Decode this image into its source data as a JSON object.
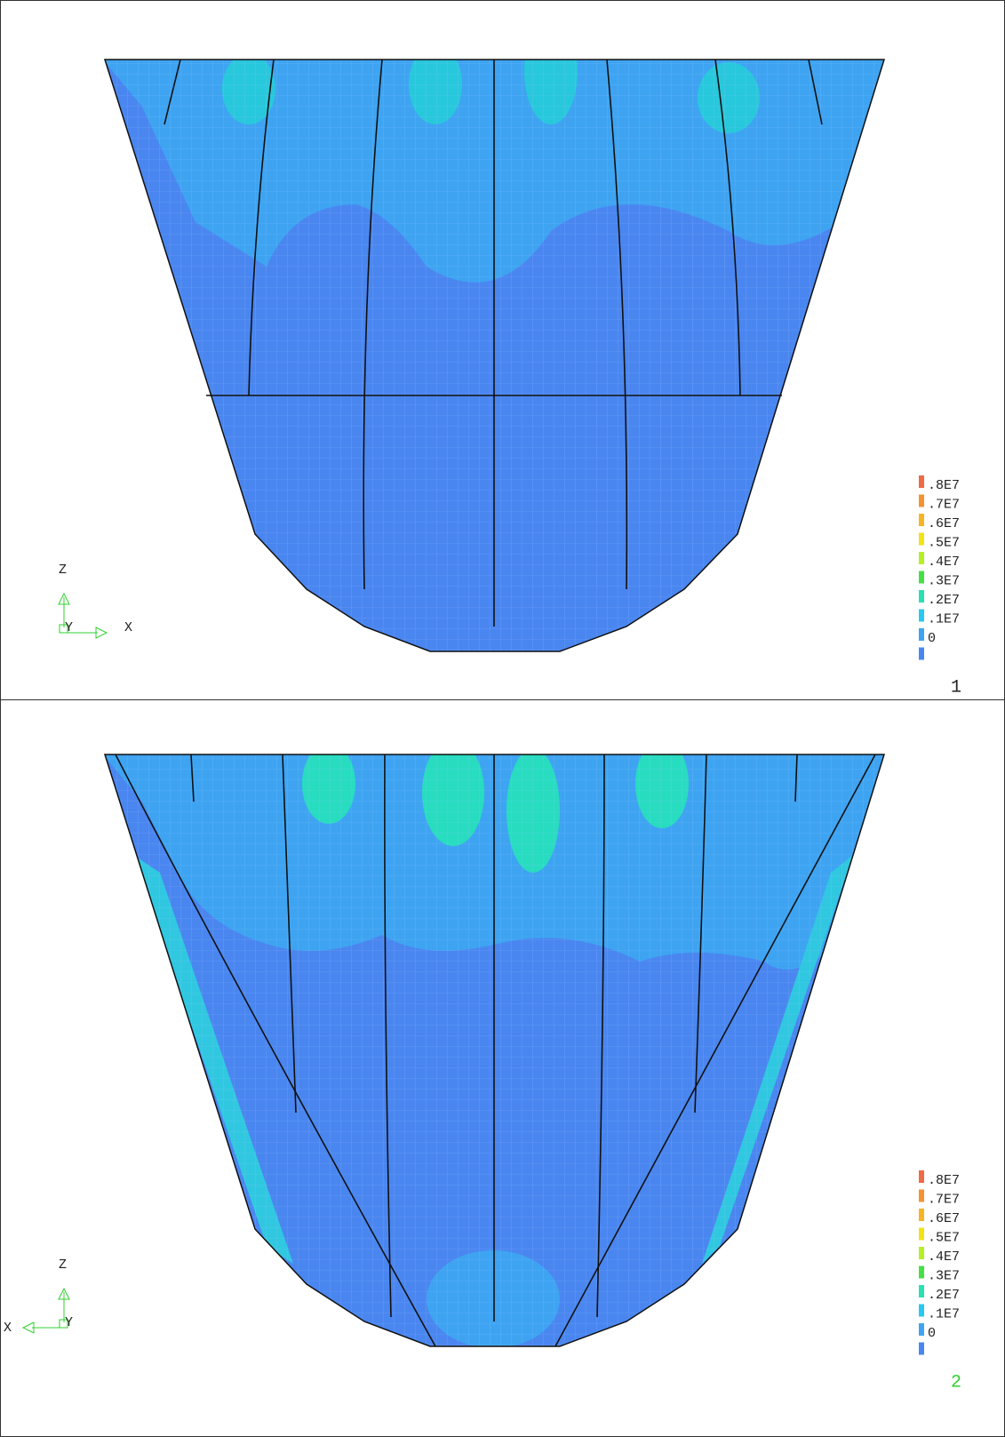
{
  "panels": [
    {
      "number": "1",
      "legend": [
        ".8E7",
        ".7E7",
        ".6E7",
        ".5E7",
        ".4E7",
        ".3E7",
        ".2E7",
        ".1E7",
        "0"
      ],
      "triad": {
        "z": "Z",
        "y": "Y",
        "x": "X"
      }
    },
    {
      "number": "2",
      "legend": [
        ".8E7",
        ".7E7",
        ".6E7",
        ".5E7",
        ".4E7",
        ".3E7",
        ".2E7",
        ".1E7",
        "0"
      ],
      "triad": {
        "z": "Z",
        "y": "Y",
        "x": "X"
      }
    }
  ]
}
